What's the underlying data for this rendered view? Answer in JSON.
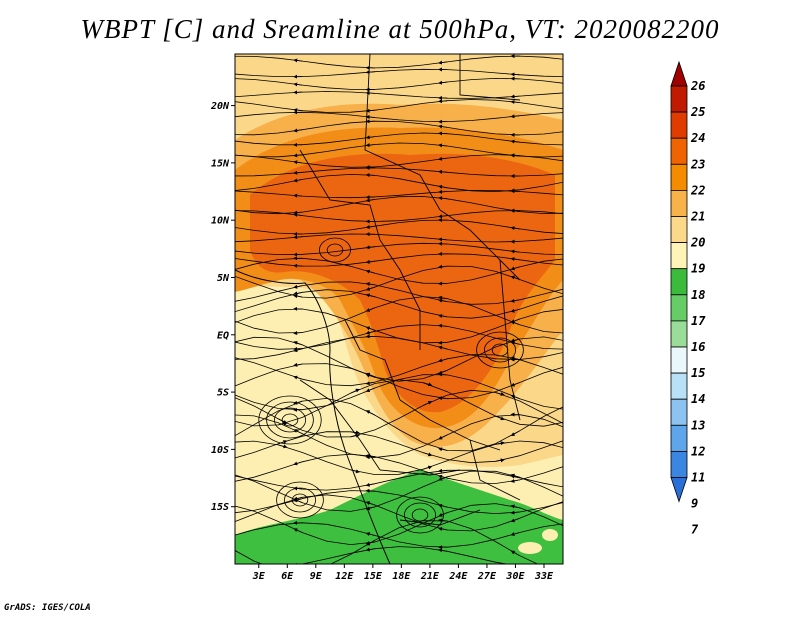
{
  "title": "WBPT [C] and Sreamline at 500hPa, VT: 2020082200",
  "footer": "GrADS: IGES/COLA",
  "map": {
    "lat_labels": [
      "20N",
      "15N",
      "10N",
      "5N",
      "EQ",
      "5S",
      "10S",
      "15S"
    ],
    "lat_values": [
      20,
      15,
      10,
      5,
      0,
      -5,
      -10,
      -15
    ],
    "lon_labels": [
      "3E",
      "6E",
      "9E",
      "12E",
      "15E",
      "18E",
      "21E",
      "24E",
      "27E",
      "30E",
      "33E"
    ],
    "lon_values": [
      3,
      6,
      9,
      12,
      15,
      18,
      21,
      24,
      27,
      30,
      33
    ],
    "lon_range": [
      0.5,
      35
    ],
    "lat_range": [
      -20,
      24.5
    ]
  },
  "colorbar": {
    "labels": [
      "26",
      "25",
      "24",
      "23",
      "22",
      "21",
      "20",
      "19",
      "18",
      "17",
      "16",
      "15",
      "14",
      "13",
      "12",
      "11",
      "9",
      "7"
    ],
    "colors": [
      "#a00000",
      "#c01a00",
      "#e03c00",
      "#f06400",
      "#f58c00",
      "#f8b24a",
      "#fcd98a",
      "#fff3b8",
      "#3cba3c",
      "#66cc66",
      "#99dd99",
      "#eaf7fb",
      "#b8e1f7",
      "#8cc3f0",
      "#5ea5ea",
      "#3b86e0",
      "#2a6fd8"
    ]
  },
  "colors": {
    "temp_19": "#fdefb2",
    "temp_20": "#fbd78a",
    "temp_21": "#f7b04a",
    "temp_22": "#f28e18",
    "temp_23": "#ec6612",
    "temp_18": "#3fbf3f"
  }
}
